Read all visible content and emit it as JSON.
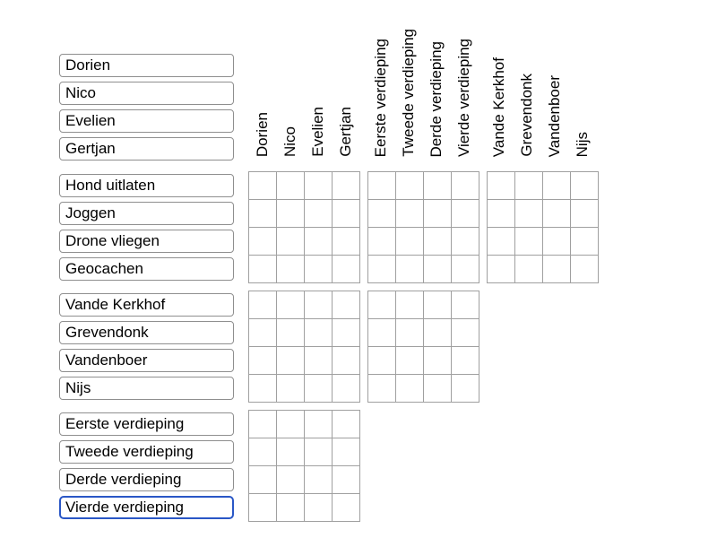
{
  "ui": {
    "background": "#ffffff",
    "selected_item": "Vierde verdieping",
    "colors": {
      "page_bg": "#ffffff",
      "box_border": "#8f8f8f",
      "grid_line": "#a0a0a0",
      "focus_ring": "#2a57c6",
      "cell_bg": "#ffffff",
      "text": "#000000"
    }
  },
  "puzzle": {
    "categories": {
      "names": {
        "items": [
          "Dorien",
          "Nico",
          "Evelien",
          "Gertjan"
        ]
      },
      "activities": {
        "items": [
          "Hond uitlaten",
          "Joggen",
          "Drone vliegen",
          "Geocachen"
        ]
      },
      "surnames": {
        "items": [
          "Vande Kerkhof",
          "Grevendonk",
          "Vandenboer",
          "Nijs"
        ]
      },
      "floors": {
        "items": [
          "Eerste verdieping",
          "Tweede verdieping",
          "Derde verdieping",
          "Vierde verdieping"
        ]
      }
    },
    "top_left_group": "names",
    "column_groups": [
      "names",
      "floors",
      "surnames"
    ],
    "row_groups": [
      "activities",
      "surnames",
      "floors"
    ],
    "grid": {
      "block_size": "4x4",
      "blocks_per_row_group": [
        3,
        2,
        1
      ],
      "marks": []
    }
  }
}
